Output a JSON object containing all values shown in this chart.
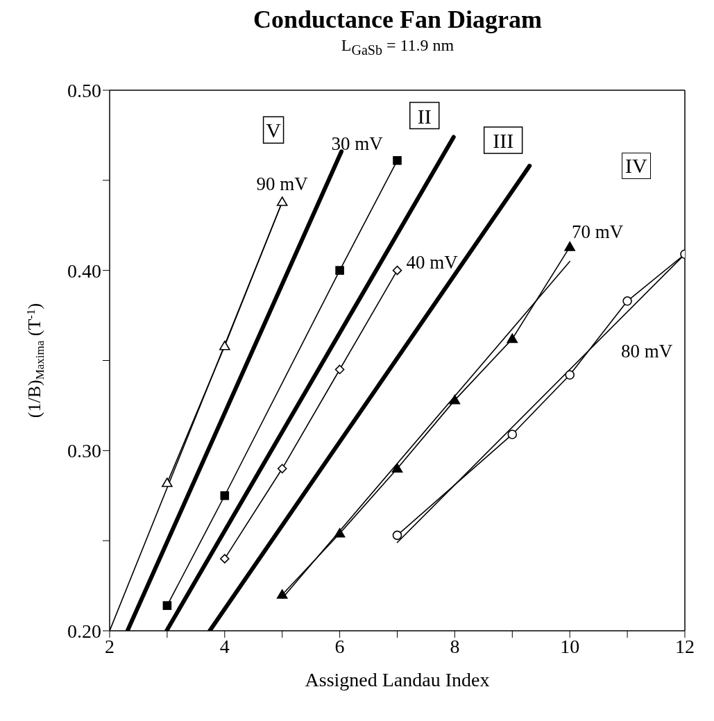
{
  "chart_data": {
    "type": "line",
    "title": "Conductance Fan Diagram",
    "subtitle": "L$_{GaSb}$ = 11.9 nm",
    "xlabel": "Assigned Landau Index",
    "ylabel": "(1/B)$_{Maxima}$  (T$^{-1}$)",
    "xlim": [
      2,
      12
    ],
    "xticks": [
      2,
      {
        "value": 3,
        "label": null
      },
      4,
      {
        "value": 5,
        "label": null
      },
      6,
      {
        "value": 7,
        "label": null
      },
      8,
      {
        "value": 9,
        "label": null
      },
      10,
      {
        "value": 11,
        "label": null
      },
      12
    ],
    "ylim": [
      0.2,
      0.5
    ],
    "yticks": [
      {
        "value": 0.2,
        "label": "0.20"
      },
      {
        "value": 0.25,
        "label": null
      },
      {
        "value": 0.3,
        "label": "0.30"
      },
      {
        "value": 0.35,
        "label": null
      },
      {
        "value": 0.4,
        "label": "0.40"
      },
      {
        "value": 0.45,
        "label": null
      },
      {
        "value": 0.5,
        "label": "0.50"
      }
    ],
    "grid": false,
    "series": [
      {
        "color": "#000000",
        "x": [
          2,
          5
        ],
        "values": [
          0.2,
          0.438
        ]
      },
      {
        "name": "90 mV",
        "color": "#000000",
        "x": [
          3,
          4,
          5
        ],
        "values": [
          0.282,
          0.358,
          0.438
        ],
        "marker": "triangle"
      },
      {
        "name": "30 mV",
        "color": "#000000",
        "x": [
          3,
          4,
          6,
          7
        ],
        "values": [
          0.214,
          0.275,
          0.4,
          0.461
        ],
        "marker": "square"
      },
      {
        "name": "40 mV",
        "color": "#000000",
        "x": [
          4,
          5,
          6,
          7
        ],
        "values": [
          0.24,
          0.29,
          0.345,
          0.4
        ],
        "marker": "diamond"
      },
      {
        "name": "70 mV",
        "color": "#000000",
        "x": [
          5,
          6,
          7,
          8,
          9,
          10
        ],
        "values": [
          0.22,
          0.254,
          0.29,
          0.328,
          0.362,
          0.413
        ],
        "marker": "triangle"
      },
      {
        "color": "#000000",
        "x": [
          5,
          10
        ],
        "values": [
          0.218,
          0.405
        ]
      },
      {
        "name": "80 mV",
        "color": "#000000",
        "x": [
          7,
          9,
          10,
          11,
          12
        ],
        "values": [
          0.253,
          0.309,
          0.342,
          0.383,
          0.409
        ],
        "marker": "circle"
      },
      {
        "color": "#000000",
        "x": [
          7,
          12
        ],
        "values": [
          0.249,
          0.409
        ]
      },
      {
        "name": "V",
        "color": "#000000",
        "x": [
          2.31,
          6.03
        ],
        "values": [
          0.2,
          0.466
        ]
      },
      {
        "name": "II",
        "color": "#000000",
        "x": [
          2.99,
          7.98
        ],
        "values": [
          0.2,
          0.474
        ]
      },
      {
        "name": "III",
        "color": "#000000",
        "x": [
          3.74,
          9.3
        ],
        "values": [
          0.2,
          0.458
        ]
      }
    ],
    "annotations": [
      "IV"
    ]
  }
}
